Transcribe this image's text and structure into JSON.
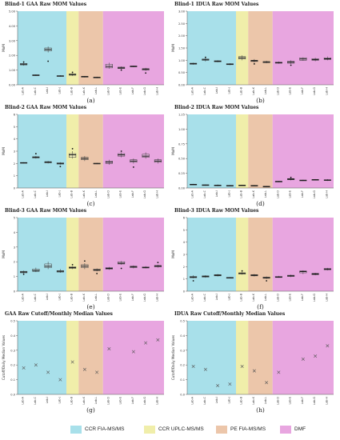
{
  "legend": [
    {
      "label": "CCR FIA-MS/MS",
      "color": "#a8e0ea"
    },
    {
      "label": "CCR UPLC-MS/MS",
      "color": "#f0eeaa"
    },
    {
      "label": "PE FIA-MS/MS",
      "color": "#ecc6aa"
    },
    {
      "label": "DMF",
      "color": "#e8a6e0"
    }
  ],
  "chart_data": [
    {
      "type": "box",
      "title": "Blind-1 GAA Raw MOM Values",
      "caption": "(a)",
      "ylabel": "MoM",
      "ylim": [
        0,
        5
      ],
      "yticks": [
        0,
        1,
        2,
        3,
        4,
        5
      ],
      "ytick_labels": [
        "0.00",
        "1.00",
        "2.00",
        "3.00",
        "4.00",
        "5.00"
      ],
      "categories": [
        "Lab-A",
        "Lab-C",
        "Lab-I",
        "Lab-J",
        "Lab-B",
        "Lab-K",
        "Lab-L",
        "Lab-D",
        "Lab-E",
        "Lab-F",
        "Lab-G",
        "Lab-H"
      ],
      "bands": [
        [
          0,
          4
        ],
        [
          4,
          5
        ],
        [
          5,
          7
        ],
        [
          7,
          12
        ]
      ],
      "boxes": [
        [
          1.3,
          1.35,
          1.4,
          1.45,
          1.5
        ],
        [
          0.6,
          0.62,
          0.65,
          0.68,
          0.7
        ],
        [
          2.2,
          2.3,
          2.4,
          2.5,
          2.6
        ],
        [
          0.55,
          0.57,
          0.6,
          0.62,
          0.65
        ],
        [
          0.6,
          0.65,
          0.7,
          0.74,
          0.78
        ],
        [
          0.5,
          0.52,
          0.55,
          0.58,
          0.6
        ],
        [
          0.45,
          0.47,
          0.5,
          0.52,
          0.55
        ],
        [
          1.1,
          1.15,
          1.25,
          1.4,
          1.5
        ],
        [
          1.05,
          1.1,
          1.15,
          1.2,
          1.25
        ],
        [
          1.2,
          1.22,
          1.25,
          1.28,
          1.3
        ],
        [
          0.95,
          1.0,
          1.05,
          1.1,
          1.15
        ],
        [
          0,
          0,
          0,
          0,
          0
        ]
      ],
      "outliers": [
        [
          0,
          1.55
        ],
        [
          2,
          1.6
        ],
        [
          4,
          0.85
        ],
        [
          8,
          1.0
        ],
        [
          10,
          0.8
        ]
      ]
    },
    {
      "type": "box",
      "title": "Blind-1 IDUA Raw MOM Values",
      "caption": "(b)",
      "ylabel": "MoM",
      "ylim": [
        0,
        3
      ],
      "yticks": [
        0,
        0.5,
        1,
        1.5,
        2,
        2.5,
        3
      ],
      "ytick_labels": [
        "0.00",
        "0.50",
        "1.00",
        "1.50",
        "2.00",
        "2.50",
        "3.00"
      ],
      "categories": [
        "Lab-A",
        "Lab-C",
        "Lab-I",
        "Lab-J",
        "Lab-B",
        "Lab-K",
        "Lab-L",
        "Lab-D",
        "Lab-E",
        "Lab-F",
        "Lab-G",
        "Lab-H"
      ],
      "bands": [
        [
          0,
          4
        ],
        [
          4,
          5
        ],
        [
          5,
          7
        ],
        [
          7,
          12
        ]
      ],
      "boxes": [
        [
          0.82,
          0.84,
          0.86,
          0.88,
          0.9
        ],
        [
          0.95,
          1.0,
          1.02,
          1.05,
          1.1
        ],
        [
          0.92,
          0.94,
          0.96,
          0.98,
          1.0
        ],
        [
          0.8,
          0.82,
          0.84,
          0.86,
          0.88
        ],
        [
          1.0,
          1.05,
          1.1,
          1.15,
          1.2
        ],
        [
          0.9,
          0.95,
          0.98,
          1.0,
          1.05
        ],
        [
          0.88,
          0.9,
          0.92,
          0.95,
          0.98
        ],
        [
          0.86,
          0.88,
          0.9,
          0.92,
          0.95
        ],
        [
          0.85,
          0.88,
          0.92,
          0.96,
          1.0
        ],
        [
          0.98,
          1.0,
          1.05,
          1.1,
          1.12
        ],
        [
          0.96,
          1.0,
          1.03,
          1.06,
          1.1
        ],
        [
          1.0,
          1.03,
          1.06,
          1.1,
          1.15
        ]
      ],
      "outliers": [
        [
          1,
          1.12
        ],
        [
          5,
          0.85
        ],
        [
          8,
          0.8
        ]
      ]
    },
    {
      "type": "box",
      "title": "Blind-2 GAA Raw MOM Values",
      "caption": "(c)",
      "ylabel": "MoM",
      "ylim": [
        0,
        6
      ],
      "yticks": [
        0,
        1,
        2,
        3,
        4,
        5,
        6
      ],
      "ytick_labels": [
        "0",
        "1",
        "2",
        "3",
        "4",
        "5",
        "6"
      ],
      "categories": [
        "Lab-A",
        "Lab-C",
        "Lab-I",
        "Lab-J",
        "Lab-B",
        "Lab-K",
        "Lab-L",
        "Lab-D",
        "Lab-E",
        "Lab-F",
        "Lab-G",
        "Lab-H"
      ],
      "bands": [
        [
          0,
          4
        ],
        [
          4,
          5
        ],
        [
          5,
          7
        ],
        [
          7,
          12
        ]
      ],
      "boxes": [
        [
          2.0,
          2.02,
          2.05,
          2.08,
          2.1
        ],
        [
          2.4,
          2.45,
          2.5,
          2.55,
          2.6
        ],
        [
          2.0,
          2.05,
          2.1,
          2.15,
          2.2
        ],
        [
          1.9,
          1.95,
          2.0,
          2.05,
          2.1
        ],
        [
          2.4,
          2.5,
          2.7,
          2.8,
          3.0
        ],
        [
          2.2,
          2.3,
          2.4,
          2.5,
          2.6
        ],
        [
          1.95,
          1.98,
          2.0,
          2.02,
          2.05
        ],
        [
          1.9,
          2.0,
          2.1,
          2.2,
          2.3
        ],
        [
          2.5,
          2.6,
          2.7,
          2.8,
          2.9
        ],
        [
          2.0,
          2.1,
          2.2,
          2.3,
          2.4
        ],
        [
          2.4,
          2.5,
          2.6,
          2.75,
          2.9
        ],
        [
          2.0,
          2.1,
          2.2,
          2.3,
          2.4
        ]
      ],
      "outliers": [
        [
          1,
          2.8
        ],
        [
          3,
          1.75
        ],
        [
          4,
          3.2
        ],
        [
          8,
          3.0
        ],
        [
          9,
          1.7
        ]
      ]
    },
    {
      "type": "box",
      "title": "Blind-2 IDUA Raw MOM Values",
      "caption": "(d)",
      "ylabel": "MoM",
      "ylim": [
        0,
        1.25
      ],
      "yticks": [
        0,
        0.25,
        0.5,
        0.75,
        1.0,
        1.25
      ],
      "ytick_labels": [
        "0.00",
        "0.25",
        "0.50",
        "0.75",
        "1.00",
        "1.25"
      ],
      "categories": [
        "Lab-A",
        "Lab-C",
        "Lab-I",
        "Lab-J",
        "Lab-B",
        "Lab-K",
        "Lab-L",
        "Lab-D",
        "Lab-E",
        "Lab-F",
        "Lab-G",
        "Lab-H"
      ],
      "bands": [
        [
          0,
          4
        ],
        [
          4,
          5
        ],
        [
          5,
          7
        ],
        [
          7,
          12
        ]
      ],
      "boxes": [
        [
          0.05,
          0.055,
          0.06,
          0.065,
          0.07
        ],
        [
          0.04,
          0.045,
          0.05,
          0.055,
          0.06
        ],
        [
          0.03,
          0.04,
          0.045,
          0.05,
          0.06
        ],
        [
          0.03,
          0.035,
          0.04,
          0.045,
          0.05
        ],
        [
          0.035,
          0.04,
          0.045,
          0.05,
          0.055
        ],
        [
          0.03,
          0.035,
          0.04,
          0.045,
          0.05
        ],
        [
          0.015,
          0.02,
          0.025,
          0.03,
          0.035
        ],
        [
          0.1,
          0.105,
          0.11,
          0.115,
          0.12
        ],
        [
          0.13,
          0.14,
          0.15,
          0.16,
          0.17
        ],
        [
          0.12,
          0.125,
          0.13,
          0.135,
          0.14
        ],
        [
          0.13,
          0.135,
          0.14,
          0.145,
          0.15
        ],
        [
          0.12,
          0.128,
          0.135,
          0.14,
          0.15
        ]
      ],
      "outliers": [
        [
          8,
          0.18
        ]
      ]
    },
    {
      "type": "box",
      "title": "Blind-3 GAA Raw MOM Values",
      "caption": "(e)",
      "ylabel": "MoM",
      "ylim": [
        0,
        5
      ],
      "yticks": [
        0,
        1,
        2,
        3,
        4,
        5
      ],
      "ytick_labels": [
        "0",
        "1",
        "2",
        "3",
        "4",
        "5"
      ],
      "categories": [
        "Lab-A",
        "Lab-C",
        "Lab-I",
        "Lab-J",
        "Lab-B",
        "Lab-K",
        "Lab-L",
        "Lab-D",
        "Lab-E",
        "Lab-F",
        "Lab-G",
        "Lab-H"
      ],
      "bands": [
        [
          0,
          4
        ],
        [
          4,
          5
        ],
        [
          5,
          7
        ],
        [
          7,
          12
        ]
      ],
      "boxes": [
        [
          1.2,
          1.25,
          1.3,
          1.35,
          1.4
        ],
        [
          1.3,
          1.35,
          1.4,
          1.5,
          1.6
        ],
        [
          1.5,
          1.6,
          1.7,
          1.85,
          2.0
        ],
        [
          1.25,
          1.3,
          1.35,
          1.4,
          1.5
        ],
        [
          1.5,
          1.55,
          1.6,
          1.65,
          1.7
        ],
        [
          1.5,
          1.6,
          1.7,
          1.8,
          1.9
        ],
        [
          1.35,
          1.4,
          1.45,
          1.5,
          1.55
        ],
        [
          1.45,
          1.5,
          1.55,
          1.6,
          1.65
        ],
        [
          1.8,
          1.85,
          1.9,
          2.0,
          2.05
        ],
        [
          1.55,
          1.6,
          1.65,
          1.7,
          1.75
        ],
        [
          1.55,
          1.58,
          1.6,
          1.65,
          1.7
        ],
        [
          1.6,
          1.65,
          1.7,
          1.75,
          1.8
        ]
      ],
      "outliers": [
        [
          0,
          1.15
        ],
        [
          4,
          1.8
        ],
        [
          5,
          2.05
        ],
        [
          6,
          1.2
        ],
        [
          8,
          1.55
        ],
        [
          11,
          1.95
        ]
      ]
    },
    {
      "type": "box",
      "title": "Blind-3 IDUA Raw MOM Values",
      "caption": "(f)",
      "ylabel": "MoM",
      "ylim": [
        0,
        6
      ],
      "yticks": [
        0,
        1,
        2,
        3,
        4,
        5,
        6
      ],
      "ytick_labels": [
        "0",
        "1",
        "2",
        "3",
        "4",
        "5",
        "6"
      ],
      "categories": [
        "Lab-A",
        "Lab-C",
        "Lab-I",
        "Lab-J",
        "Lab-B",
        "Lab-K",
        "Lab-L",
        "Lab-D",
        "Lab-E",
        "Lab-F",
        "Lab-G",
        "Lab-H"
      ],
      "bands": [
        [
          0,
          4
        ],
        [
          4,
          5
        ],
        [
          5,
          7
        ],
        [
          7,
          12
        ]
      ],
      "boxes": [
        [
          1.05,
          1.1,
          1.15,
          1.2,
          1.3
        ],
        [
          1.1,
          1.15,
          1.2,
          1.25,
          1.3
        ],
        [
          1.2,
          1.25,
          1.3,
          1.35,
          1.4
        ],
        [
          1.05,
          1.08,
          1.1,
          1.12,
          1.15
        ],
        [
          1.35,
          1.4,
          1.45,
          1.5,
          1.55
        ],
        [
          1.2,
          1.25,
          1.3,
          1.35,
          1.4
        ],
        [
          1.0,
          1.05,
          1.1,
          1.15,
          1.2
        ],
        [
          1.1,
          1.12,
          1.15,
          1.2,
          1.25
        ],
        [
          1.15,
          1.2,
          1.25,
          1.3,
          1.35
        ],
        [
          1.4,
          1.5,
          1.6,
          1.65,
          1.7
        ],
        [
          1.3,
          1.35,
          1.4,
          1.45,
          1.5
        ],
        [
          1.7,
          1.75,
          1.8,
          1.85,
          1.9
        ]
      ],
      "outliers": [
        [
          0,
          0.85
        ],
        [
          4,
          1.65
        ],
        [
          6,
          0.85
        ]
      ]
    },
    {
      "type": "scatter",
      "title": "GAA Raw Cutoff/Monthly Median Values",
      "caption": "(g)",
      "ylabel": "Cutoff/Daily Median Values",
      "ylim": [
        0,
        0.5
      ],
      "yticks": [
        0,
        0.1,
        0.2,
        0.3,
        0.4,
        0.5
      ],
      "ytick_labels": [
        "0.0",
        "0.1",
        "0.2",
        "0.3",
        "0.4",
        "0.5"
      ],
      "categories": [
        "Lab-A",
        "Lab-C",
        "Lab-I",
        "Lab-J",
        "Lab-B",
        "Lab-K",
        "Lab-L",
        "Lab-D",
        "Lab-E",
        "Lab-F",
        "Lab-G",
        "Lab-H"
      ],
      "bands": [
        [
          0,
          4
        ],
        [
          4,
          5
        ],
        [
          5,
          7
        ],
        [
          7,
          12
        ]
      ],
      "points": [
        [
          0,
          0.18
        ],
        [
          1,
          0.2
        ],
        [
          2,
          0.15
        ],
        [
          3,
          0.1
        ],
        [
          4,
          0.22
        ],
        [
          5,
          0.17
        ],
        [
          6,
          0.15
        ],
        [
          7,
          0.31
        ],
        [
          9,
          0.29
        ],
        [
          10,
          0.35
        ],
        [
          11,
          0.37
        ]
      ]
    },
    {
      "type": "scatter",
      "title": "IDUA Raw Cutoff/Monthly Median Values",
      "caption": "(h)",
      "ylabel": "Cutoff/Daily Median Values",
      "ylim": [
        0,
        0.5
      ],
      "yticks": [
        0,
        0.1,
        0.2,
        0.3,
        0.4,
        0.5
      ],
      "ytick_labels": [
        "0.0",
        "0.1",
        "0.2",
        "0.3",
        "0.4",
        "0.5"
      ],
      "categories": [
        "Lab-A",
        "Lab-C",
        "Lab-I",
        "Lab-J",
        "Lab-B",
        "Lab-K",
        "Lab-L",
        "Lab-D",
        "Lab-E",
        "Lab-F",
        "Lab-G",
        "Lab-H"
      ],
      "bands": [
        [
          0,
          4
        ],
        [
          4,
          5
        ],
        [
          5,
          7
        ],
        [
          7,
          12
        ]
      ],
      "points": [
        [
          0,
          0.19
        ],
        [
          1,
          0.17
        ],
        [
          2,
          0.06
        ],
        [
          3,
          0.07
        ],
        [
          4,
          0.19
        ],
        [
          5,
          0.16
        ],
        [
          6,
          0.08
        ],
        [
          7,
          0.15
        ],
        [
          9,
          0.24
        ],
        [
          10,
          0.26
        ],
        [
          11,
          0.33
        ]
      ]
    }
  ]
}
